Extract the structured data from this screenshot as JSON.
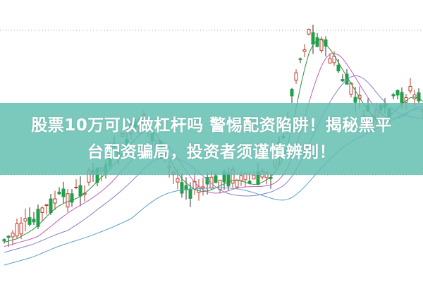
{
  "headline": {
    "line1": "股票10万可以做杠杆吗 警惕配资陷阱！揭秘黑平",
    "line2": "台配资骗局，投资者须谨慎辨别！"
  },
  "colors": {
    "banner": "#64beb2",
    "up": "#c0392b",
    "down": "#1fa04a",
    "ma1": "#2f8f3f",
    "ma2": "#8a7fd0",
    "ma3": "#5aa0c8",
    "ma4": "#c060b0"
  }
}
